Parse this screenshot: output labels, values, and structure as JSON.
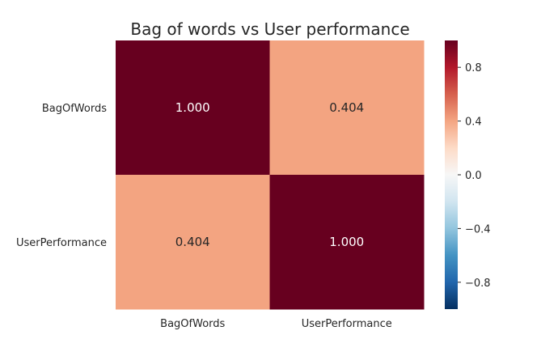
{
  "chart_data": {
    "type": "heatmap",
    "title": "Bag of words vs User performance",
    "x_categories": [
      "BagOfWords",
      "UserPerformance"
    ],
    "y_categories": [
      "BagOfWords",
      "UserPerformance"
    ],
    "values": [
      [
        1.0,
        0.404
      ],
      [
        0.404,
        1.0
      ]
    ],
    "annotations": [
      [
        "1.000",
        "0.404"
      ],
      [
        "0.404",
        "1.000"
      ]
    ],
    "xlabel": "",
    "ylabel": "",
    "colormap": "RdBu_r",
    "colorbar": {
      "vmin": -1.0,
      "vmax": 1.0,
      "ticks": [
        -0.8,
        -0.4,
        0.0,
        0.4,
        0.8
      ],
      "tick_labels": [
        "−0.8",
        "−0.4",
        "0.0",
        "0.4",
        "0.8"
      ]
    },
    "grid": false
  }
}
